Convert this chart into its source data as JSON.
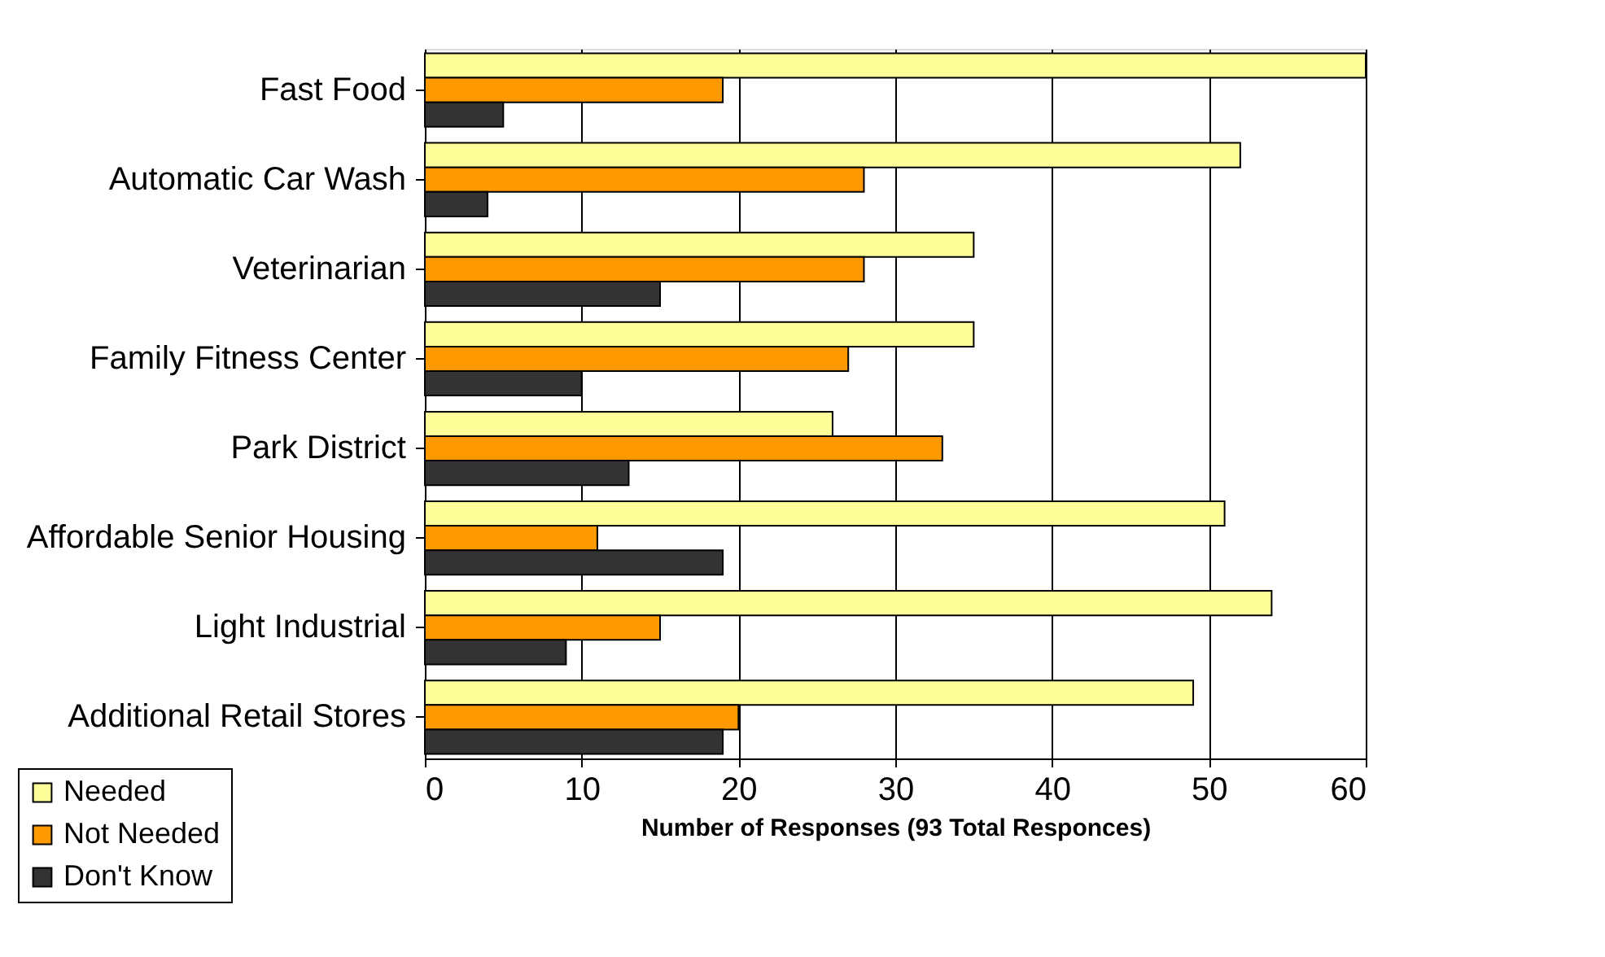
{
  "chart_data": {
    "type": "bar",
    "orientation": "horizontal",
    "categories": [
      "Fast Food",
      "Automatic Car Wash",
      "Veterinarian",
      "Family Fitness Center",
      "Park District",
      "Affordable Senior Housing",
      "Light Industrial",
      "Additional Retail Stores"
    ],
    "series": [
      {
        "name": "Needed",
        "color": "#ffff99",
        "values": [
          60,
          52,
          35,
          35,
          26,
          51,
          54,
          49
        ]
      },
      {
        "name": "Not Needed",
        "color": "#ff9900",
        "values": [
          19,
          28,
          28,
          27,
          33,
          11,
          15,
          20
        ]
      },
      {
        "name": "Don't Know",
        "color": "#333333",
        "values": [
          5,
          4,
          15,
          10,
          13,
          19,
          9,
          19
        ]
      }
    ],
    "xlabel": "Number of Responses (93 Total Responces)",
    "xlim": [
      0,
      60
    ],
    "xticks": [
      0,
      10,
      20,
      30,
      40,
      50,
      60
    ],
    "grid": "x",
    "legend": "bottom left"
  }
}
